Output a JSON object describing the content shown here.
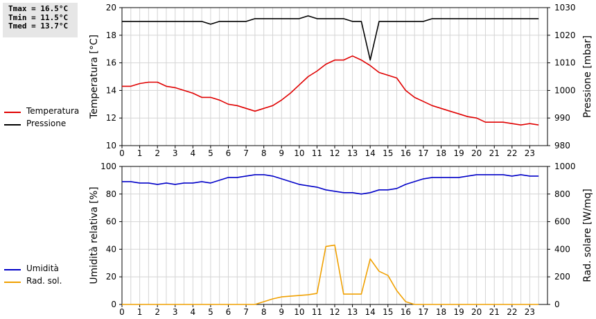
{
  "stats": {
    "tmax": "Tmax = 16.5°C",
    "tmin": "Tmin = 11.5°C",
    "tmed": "Tmed = 13.7°C"
  },
  "legend_top": [
    {
      "label": "Temperatura",
      "color": "#e00000"
    },
    {
      "label": "Pressione",
      "color": "#000000"
    }
  ],
  "legend_bottom": [
    {
      "label": "Umidità",
      "color": "#0000c8"
    },
    {
      "label": "Rad. sol.",
      "color": "#f0a000"
    }
  ],
  "chart_data": [
    {
      "type": "line",
      "xlim": [
        0,
        24
      ],
      "xticks": [
        "0",
        "1",
        "2",
        "3",
        "4",
        "5",
        "6",
        "7",
        "8",
        "9",
        "10",
        "11",
        "12",
        "13",
        "14",
        "15",
        "16",
        "17",
        "18",
        "19",
        "20",
        "21",
        "22",
        "23"
      ],
      "ylabel": "Temperatura [°C]",
      "ylim": [
        10,
        20
      ],
      "yticks": [
        "10",
        "12",
        "14",
        "16",
        "18",
        "20"
      ],
      "y2label": "Pressione [mbar]",
      "y2lim": [
        980,
        1030
      ],
      "y2ticks": [
        "980",
        "990",
        "1000",
        "1010",
        "1020",
        "1030"
      ],
      "grid": true,
      "series": [
        {
          "name": "Temperatura",
          "axis": "left",
          "color": "#e00000",
          "x": [
            0,
            0.5,
            1,
            1.5,
            2,
            2.5,
            3,
            3.5,
            4,
            4.5,
            5,
            5.5,
            6,
            6.5,
            7,
            7.5,
            8,
            8.5,
            9,
            9.5,
            10,
            10.5,
            11,
            11.5,
            12,
            12.5,
            13,
            13.5,
            14,
            14.5,
            15,
            15.5,
            16,
            16.5,
            17,
            17.5,
            18,
            18.5,
            19,
            19.5,
            20,
            20.5,
            21,
            21.5,
            22,
            22.5,
            23,
            23.5
          ],
          "y": [
            14.3,
            14.3,
            14.5,
            14.6,
            14.6,
            14.3,
            14.2,
            14.0,
            13.8,
            13.5,
            13.5,
            13.3,
            13.0,
            12.9,
            12.7,
            12.5,
            12.7,
            12.9,
            13.3,
            13.8,
            14.4,
            15.0,
            15.4,
            15.9,
            16.2,
            16.2,
            16.5,
            16.2,
            15.8,
            15.3,
            15.1,
            14.9,
            14.0,
            13.5,
            13.2,
            12.9,
            12.7,
            12.5,
            12.3,
            12.1,
            12.0,
            11.7,
            11.7,
            11.7,
            11.6,
            11.5,
            11.6,
            11.5
          ]
        },
        {
          "name": "Pressione",
          "axis": "right",
          "color": "#000000",
          "x": [
            0,
            0.5,
            1,
            1.5,
            2,
            2.5,
            3,
            3.5,
            4,
            4.5,
            5,
            5.5,
            6,
            6.5,
            7,
            7.5,
            8,
            8.5,
            9,
            9.5,
            10,
            10.5,
            11,
            11.5,
            12,
            12.5,
            13,
            13.5,
            14,
            14.5,
            15,
            15.5,
            16,
            16.5,
            17,
            17.5,
            18,
            18.5,
            19,
            19.5,
            20,
            20.5,
            21,
            21.5,
            22,
            22.5,
            23,
            23.5
          ],
          "y": [
            1025,
            1025,
            1025,
            1025,
            1025,
            1025,
            1025,
            1025,
            1025,
            1025,
            1024,
            1025,
            1025,
            1025,
            1025,
            1026,
            1026,
            1026,
            1026,
            1026,
            1026,
            1027,
            1026,
            1026,
            1026,
            1026,
            1025,
            1025,
            1011,
            1025,
            1025,
            1025,
            1025,
            1025,
            1025,
            1026,
            1026,
            1026,
            1026,
            1026,
            1026,
            1026,
            1026,
            1026,
            1026,
            1026,
            1026,
            1026
          ]
        }
      ]
    },
    {
      "type": "line",
      "xlim": [
        0,
        24
      ],
      "xticks": [
        "0",
        "1",
        "2",
        "3",
        "4",
        "5",
        "6",
        "7",
        "8",
        "9",
        "10",
        "11",
        "12",
        "13",
        "14",
        "15",
        "16",
        "17",
        "18",
        "19",
        "20",
        "21",
        "22",
        "23"
      ],
      "ylabel": "Umidità relativa [%]",
      "ylim": [
        0,
        100
      ],
      "yticks": [
        "0",
        "20",
        "40",
        "60",
        "80",
        "100"
      ],
      "y2label": "Rad. solare [W/mq]",
      "y2lim": [
        0,
        1000
      ],
      "y2ticks": [
        "0",
        "200",
        "400",
        "600",
        "800",
        "1000"
      ],
      "grid": true,
      "series": [
        {
          "name": "Umidità",
          "axis": "left",
          "color": "#0000c8",
          "x": [
            0,
            0.5,
            1,
            1.5,
            2,
            2.5,
            3,
            3.5,
            4,
            4.5,
            5,
            5.5,
            6,
            6.5,
            7,
            7.5,
            8,
            8.5,
            9,
            9.5,
            10,
            10.5,
            11,
            11.5,
            12,
            12.5,
            13,
            13.5,
            14,
            14.5,
            15,
            15.5,
            16,
            16.5,
            17,
            17.5,
            18,
            18.5,
            19,
            19.5,
            20,
            20.5,
            21,
            21.5,
            22,
            22.5,
            23,
            23.5
          ],
          "y": [
            89,
            89,
            88,
            88,
            87,
            88,
            87,
            88,
            88,
            89,
            88,
            90,
            92,
            92,
            93,
            94,
            94,
            93,
            91,
            89,
            87,
            86,
            85,
            83,
            82,
            81,
            81,
            80,
            81,
            83,
            83,
            84,
            87,
            89,
            91,
            92,
            92,
            92,
            92,
            93,
            94,
            94,
            94,
            94,
            93,
            94,
            93,
            93
          ]
        },
        {
          "name": "Rad. sol.",
          "axis": "right",
          "color": "#f0a000",
          "x": [
            0,
            0.5,
            1,
            1.5,
            2,
            2.5,
            3,
            3.5,
            4,
            4.5,
            5,
            5.5,
            6,
            6.5,
            7,
            7.5,
            8,
            8.5,
            9,
            9.5,
            10,
            10.5,
            11,
            11.5,
            12,
            12.5,
            13,
            13.5,
            14,
            14.5,
            15,
            15.5,
            16,
            16.5,
            17,
            17.5,
            18,
            18.5,
            19,
            19.5,
            20,
            20.5,
            21,
            21.5,
            22,
            22.5,
            23,
            23.5
          ],
          "y": [
            0,
            0,
            0,
            0,
            0,
            0,
            0,
            0,
            0,
            0,
            0,
            0,
            0,
            0,
            0,
            0,
            20,
            40,
            55,
            60,
            65,
            70,
            80,
            420,
            430,
            75,
            75,
            75,
            330,
            240,
            210,
            100,
            20,
            0,
            0,
            0,
            0,
            0,
            0,
            0,
            0,
            0,
            0,
            0,
            0,
            0,
            0,
            0
          ]
        }
      ]
    }
  ]
}
